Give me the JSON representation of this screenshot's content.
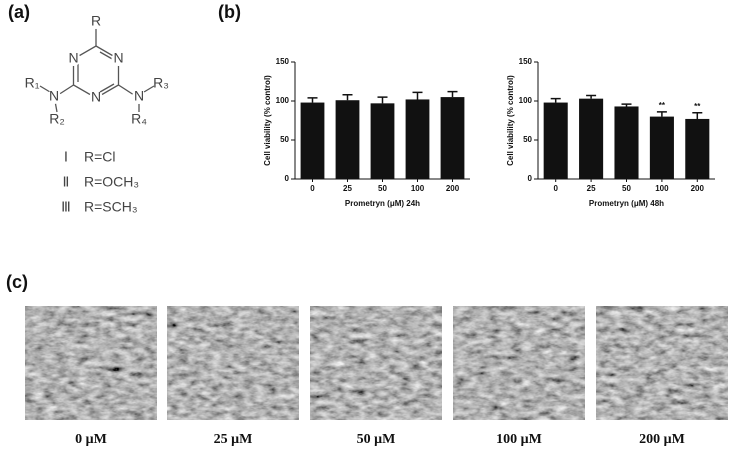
{
  "panel_labels": [
    "(a)",
    "(b)",
    "(c)"
  ],
  "structure": {
    "atoms": [
      "R",
      "N",
      "N",
      "N",
      "N",
      "N"
    ],
    "substituents": [
      "R₁",
      "R₂",
      "R₃",
      "R₄"
    ],
    "compounds": [
      {
        "numeral": "Ⅰ",
        "formula": "R=Cl"
      },
      {
        "numeral": "Ⅱ",
        "formula": "R=OCH₃"
      },
      {
        "numeral": "Ⅲ",
        "formula": "R=SCH₃"
      }
    ]
  },
  "chart_data": [
    {
      "type": "bar",
      "ylabel": "Cell viability (% control)",
      "xlabel": "Prometryn (μM) 24h",
      "categories": [
        "0",
        "25",
        "50",
        "100",
        "200"
      ],
      "values": [
        98,
        101,
        97,
        102,
        105
      ],
      "errors": [
        6,
        7,
        8,
        9,
        7
      ],
      "annotations": [
        null,
        null,
        null,
        null,
        null
      ],
      "color": "#111111",
      "ylim": [
        0,
        150
      ],
      "yticks": [
        0,
        50,
        100,
        150
      ]
    },
    {
      "type": "bar",
      "ylabel": "Cell viability (% control)",
      "xlabel": "Prometryn (μM) 48h",
      "categories": [
        "0",
        "25",
        "50",
        "100",
        "200"
      ],
      "values": [
        98,
        103,
        93,
        80,
        77
      ],
      "errors": [
        5,
        4,
        3,
        6,
        8
      ],
      "annotations": [
        null,
        null,
        null,
        "**",
        "**"
      ],
      "color": "#111111",
      "ylim": [
        0,
        150
      ],
      "yticks": [
        0,
        50,
        100,
        150
      ]
    }
  ],
  "images": {
    "captions": [
      "0 μM",
      "25 μM",
      "50 μM",
      "100 μM",
      "200 μM"
    ]
  }
}
